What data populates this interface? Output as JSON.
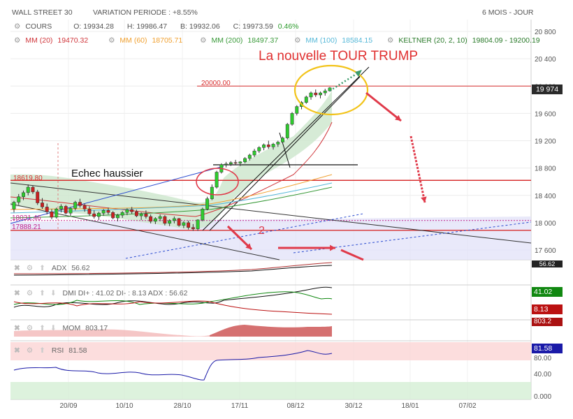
{
  "header": {
    "instrument": "WALL STREET 30",
    "variation": "VARIATION PERIODE : +8.55%",
    "period": "6 MOIS - JOUR"
  },
  "quote": {
    "label": "COURS",
    "open": "O: 19934.28",
    "high": "H: 19986.47",
    "low": "B: 19932.06",
    "close": "C: 19973.59",
    "change": "0.46%"
  },
  "indicators": [
    {
      "text": "MM (20)",
      "value": "19470.32",
      "color": "#d0363b"
    },
    {
      "text": "MM (60)",
      "value": "18705.71",
      "color": "#f0a030"
    },
    {
      "text": "MM (200)",
      "value": "18497.37",
      "color": "#3a9a3a"
    },
    {
      "text": "MM (100)",
      "value": "18584.15",
      "color": "#56b8d8"
    },
    {
      "text": "KELTNER (20, 2, 10)",
      "value": "19804.09 - 19200.19",
      "color": "#2a7a2a"
    }
  ],
  "annotations": {
    "headline": "La nouvelle TOUR TRUMP",
    "echec": "Echec haussier",
    "level_20000": "20000.00",
    "level_18619": "18619.80",
    "level_18031": "18031.46",
    "level_17888": "17888.21",
    "marker_2": "2"
  },
  "colors": {
    "up_candle": "#2ecc2e",
    "down_candle": "#cc2020",
    "resistance": "#d83030",
    "headline": "#e03030",
    "ellipse_yellow": "#f2c318",
    "arrow": "#e03a4a",
    "keltner_fill": "#cfe8cf",
    "channel_fill": "#e2e2f8",
    "price_tag": "#2a2a2a"
  },
  "price_tag": "19 974",
  "chart_data": {
    "type": "candlestick",
    "y_axis_ticks": [
      "20 800",
      "20 400",
      "20 000",
      "19 600",
      "19 200",
      "18 800",
      "18 400",
      "18 000",
      "17 600"
    ],
    "x_axis_ticks": [
      "20/09",
      "10/10",
      "28/10",
      "17/11",
      "08/12",
      "30/12",
      "18/01",
      "07/02"
    ],
    "last_price": 19974,
    "horizontal_levels": [
      20000.0,
      18619.8,
      18031.46,
      17888.21
    ],
    "candles": [
      [
        18200,
        18320,
        18150,
        18300
      ],
      [
        18300,
        18420,
        18260,
        18380
      ],
      [
        18380,
        18470,
        18330,
        18440
      ],
      [
        18440,
        18560,
        18400,
        18520
      ],
      [
        18520,
        18540,
        18420,
        18450
      ],
      [
        18450,
        18480,
        18260,
        18290
      ],
      [
        18290,
        18360,
        18200,
        18230
      ],
      [
        18230,
        18280,
        18120,
        18160
      ],
      [
        18160,
        18200,
        18050,
        18080
      ],
      [
        18080,
        18220,
        18060,
        18200
      ],
      [
        18200,
        18270,
        18150,
        18240
      ],
      [
        18240,
        18260,
        18120,
        18140
      ],
      [
        18140,
        18230,
        18100,
        18210
      ],
      [
        18210,
        18320,
        18180,
        18300
      ],
      [
        18300,
        18350,
        18220,
        18250
      ],
      [
        18250,
        18280,
        18160,
        18200
      ],
      [
        18200,
        18240,
        18100,
        18130
      ],
      [
        18130,
        18180,
        18060,
        18090
      ],
      [
        18090,
        18160,
        18040,
        18140
      ],
      [
        18140,
        18200,
        18100,
        18180
      ],
      [
        18180,
        18220,
        18120,
        18150
      ],
      [
        18150,
        18170,
        18050,
        18070
      ],
      [
        18070,
        18130,
        18020,
        18110
      ],
      [
        18110,
        18170,
        18070,
        18150
      ],
      [
        18150,
        18210,
        18110,
        18190
      ],
      [
        18190,
        18230,
        18130,
        18160
      ],
      [
        18160,
        18190,
        18080,
        18100
      ],
      [
        18100,
        18150,
        18040,
        18130
      ],
      [
        18130,
        18180,
        18060,
        18090
      ],
      [
        18090,
        18120,
        17990,
        18020
      ],
      [
        18020,
        18080,
        17980,
        18060
      ],
      [
        18060,
        18120,
        18020,
        18090
      ],
      [
        18090,
        18110,
        17960,
        17990
      ],
      [
        17990,
        18050,
        17950,
        18030
      ],
      [
        18030,
        18090,
        17990,
        18060
      ],
      [
        18060,
        18070,
        17940,
        17960
      ],
      [
        17960,
        18020,
        17920,
        18000
      ],
      [
        18000,
        18030,
        17900,
        17930
      ],
      [
        17930,
        17980,
        17880,
        17910
      ],
      [
        17910,
        18050,
        17880,
        18040
      ],
      [
        18040,
        18220,
        18020,
        18200
      ],
      [
        18200,
        18380,
        18180,
        18350
      ],
      [
        18350,
        18560,
        18330,
        18520
      ],
      [
        18520,
        18760,
        18500,
        18740
      ],
      [
        18740,
        18870,
        18720,
        18850
      ],
      [
        18850,
        18890,
        18810,
        18860
      ],
      [
        18860,
        18900,
        18830,
        18880
      ],
      [
        18880,
        18920,
        18850,
        18870
      ],
      [
        18870,
        18900,
        18830,
        18890
      ],
      [
        18890,
        18960,
        18870,
        18940
      ],
      [
        18940,
        19010,
        18910,
        18990
      ],
      [
        18990,
        19080,
        18960,
        19050
      ],
      [
        19050,
        19120,
        19020,
        19100
      ],
      [
        19100,
        19160,
        19060,
        19140
      ],
      [
        19140,
        19200,
        19080,
        19110
      ],
      [
        19110,
        19170,
        19070,
        19150
      ],
      [
        19150,
        19200,
        19110,
        19180
      ],
      [
        19180,
        19260,
        19160,
        19240
      ],
      [
        19240,
        19460,
        19220,
        19440
      ],
      [
        19440,
        19620,
        19420,
        19600
      ],
      [
        19600,
        19720,
        19570,
        19700
      ],
      [
        19700,
        19780,
        19660,
        19760
      ],
      [
        19760,
        19860,
        19740,
        19840
      ],
      [
        19840,
        19920,
        19800,
        19900
      ],
      [
        19900,
        19950,
        19840,
        19870
      ],
      [
        19870,
        19920,
        19820,
        19900
      ],
      [
        19900,
        19960,
        19860,
        19930
      ],
      [
        19930,
        19986,
        19920,
        19974
      ]
    ],
    "panels": [
      {
        "name": "ADX",
        "value": "56.62",
        "tag": "56.62",
        "tag_color": "#222222",
        "value_color": "#555555"
      },
      {
        "name": "DMI",
        "label": "DMI DI+ : 41.02 DI- : 8.13 ADX : 56.62",
        "tags": [
          {
            "text": "41.02",
            "color": "#118811"
          },
          {
            "text": "8.13",
            "color": "#bb1111"
          }
        ]
      },
      {
        "name": "MOM",
        "value": "803.17",
        "tag": "803.2",
        "tag_color": "#aa1111"
      },
      {
        "name": "RSI",
        "value": "81.58",
        "tag": "81.58",
        "tag_color": "#1a1aa8",
        "levels": [
          "80.00",
          "40.00",
          "0.000"
        ]
      }
    ]
  }
}
